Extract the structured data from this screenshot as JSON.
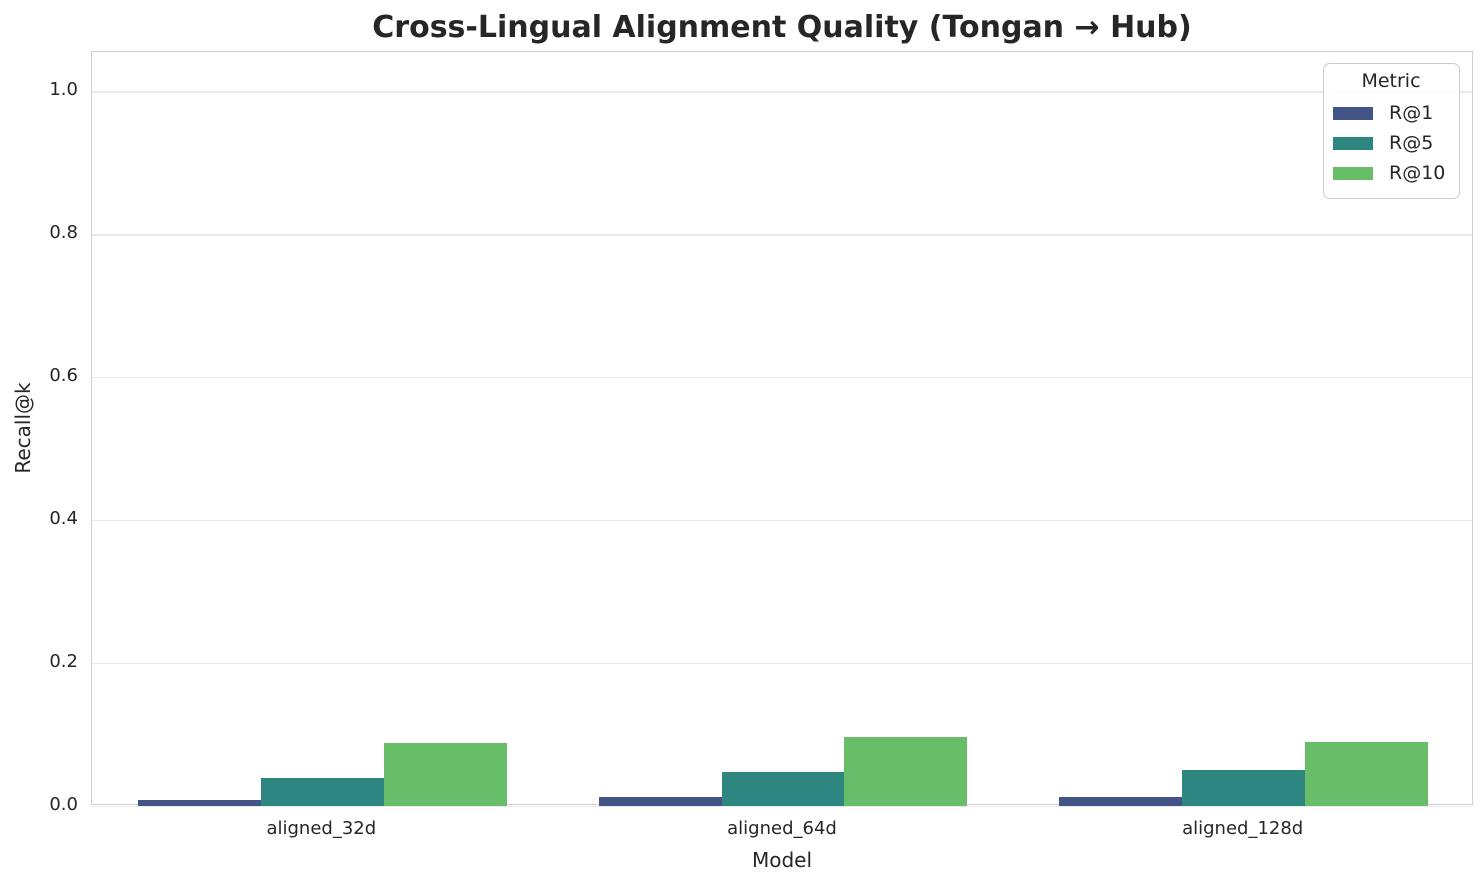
{
  "chart_data": {
    "type": "bar",
    "title": "Cross-Lingual Alignment Quality (Tongan → Hub)",
    "xlabel": "Model",
    "ylabel": "Recall@k",
    "categories": [
      "aligned_32d",
      "aligned_64d",
      "aligned_128d"
    ],
    "series": [
      {
        "name": "R@1",
        "color": "#435586",
        "values": [
          0.009,
          0.012,
          0.012
        ]
      },
      {
        "name": "R@5",
        "color": "#2e8681",
        "values": [
          0.039,
          0.048,
          0.05
        ]
      },
      {
        "name": "R@10",
        "color": "#68bd68",
        "values": [
          0.088,
          0.096,
          0.09
        ]
      }
    ],
    "legend": {
      "title": "Metric",
      "position": "upper right"
    },
    "ylim": [
      0,
      1.055
    ],
    "yticks": [
      0.0,
      0.2,
      0.4,
      0.6,
      0.8,
      1.0
    ],
    "ytick_labels": [
      "0.0",
      "0.2",
      "0.4",
      "0.6",
      "0.8",
      "1.0"
    ],
    "grid": true,
    "colors": {
      "text": "#262626",
      "gridline": "#e9e9e9",
      "spine": "#cfcfcf",
      "background": "#ffffff"
    }
  }
}
